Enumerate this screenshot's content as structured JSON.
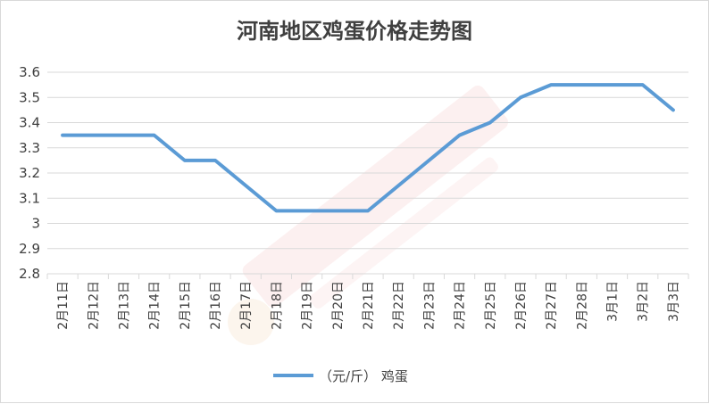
{
  "chart_data": {
    "type": "line",
    "title": "河南地区鸡蛋价格走势图",
    "categories": [
      "2月11日",
      "2月12日",
      "2月13日",
      "2月14日",
      "2月15日",
      "2月16日",
      "2月17日",
      "2月18日",
      "2月19日",
      "2月20日",
      "2月21日",
      "2月22日",
      "2月23日",
      "2月24日",
      "2月25日",
      "2月26日",
      "2月27日",
      "2月28日",
      "3月1日",
      "3月2日",
      "3月3日"
    ],
    "series": [
      {
        "name": "（元/斤） 鸡蛋",
        "color": "#5b9bd5",
        "values": [
          3.35,
          3.35,
          3.35,
          3.35,
          3.25,
          3.25,
          3.15,
          3.05,
          3.05,
          3.05,
          3.05,
          3.15,
          3.25,
          3.35,
          3.4,
          3.5,
          3.55,
          3.55,
          3.55,
          3.55,
          3.45
        ]
      }
    ],
    "ylim": [
      2.8,
      3.6
    ],
    "yticks": [
      "2.8",
      "2.9",
      "3",
      "3.1",
      "3.2",
      "3.3",
      "3.4",
      "3.5",
      "3.6"
    ],
    "grid": true,
    "legend_position": "bottom",
    "xlabel": "",
    "ylabel": ""
  }
}
